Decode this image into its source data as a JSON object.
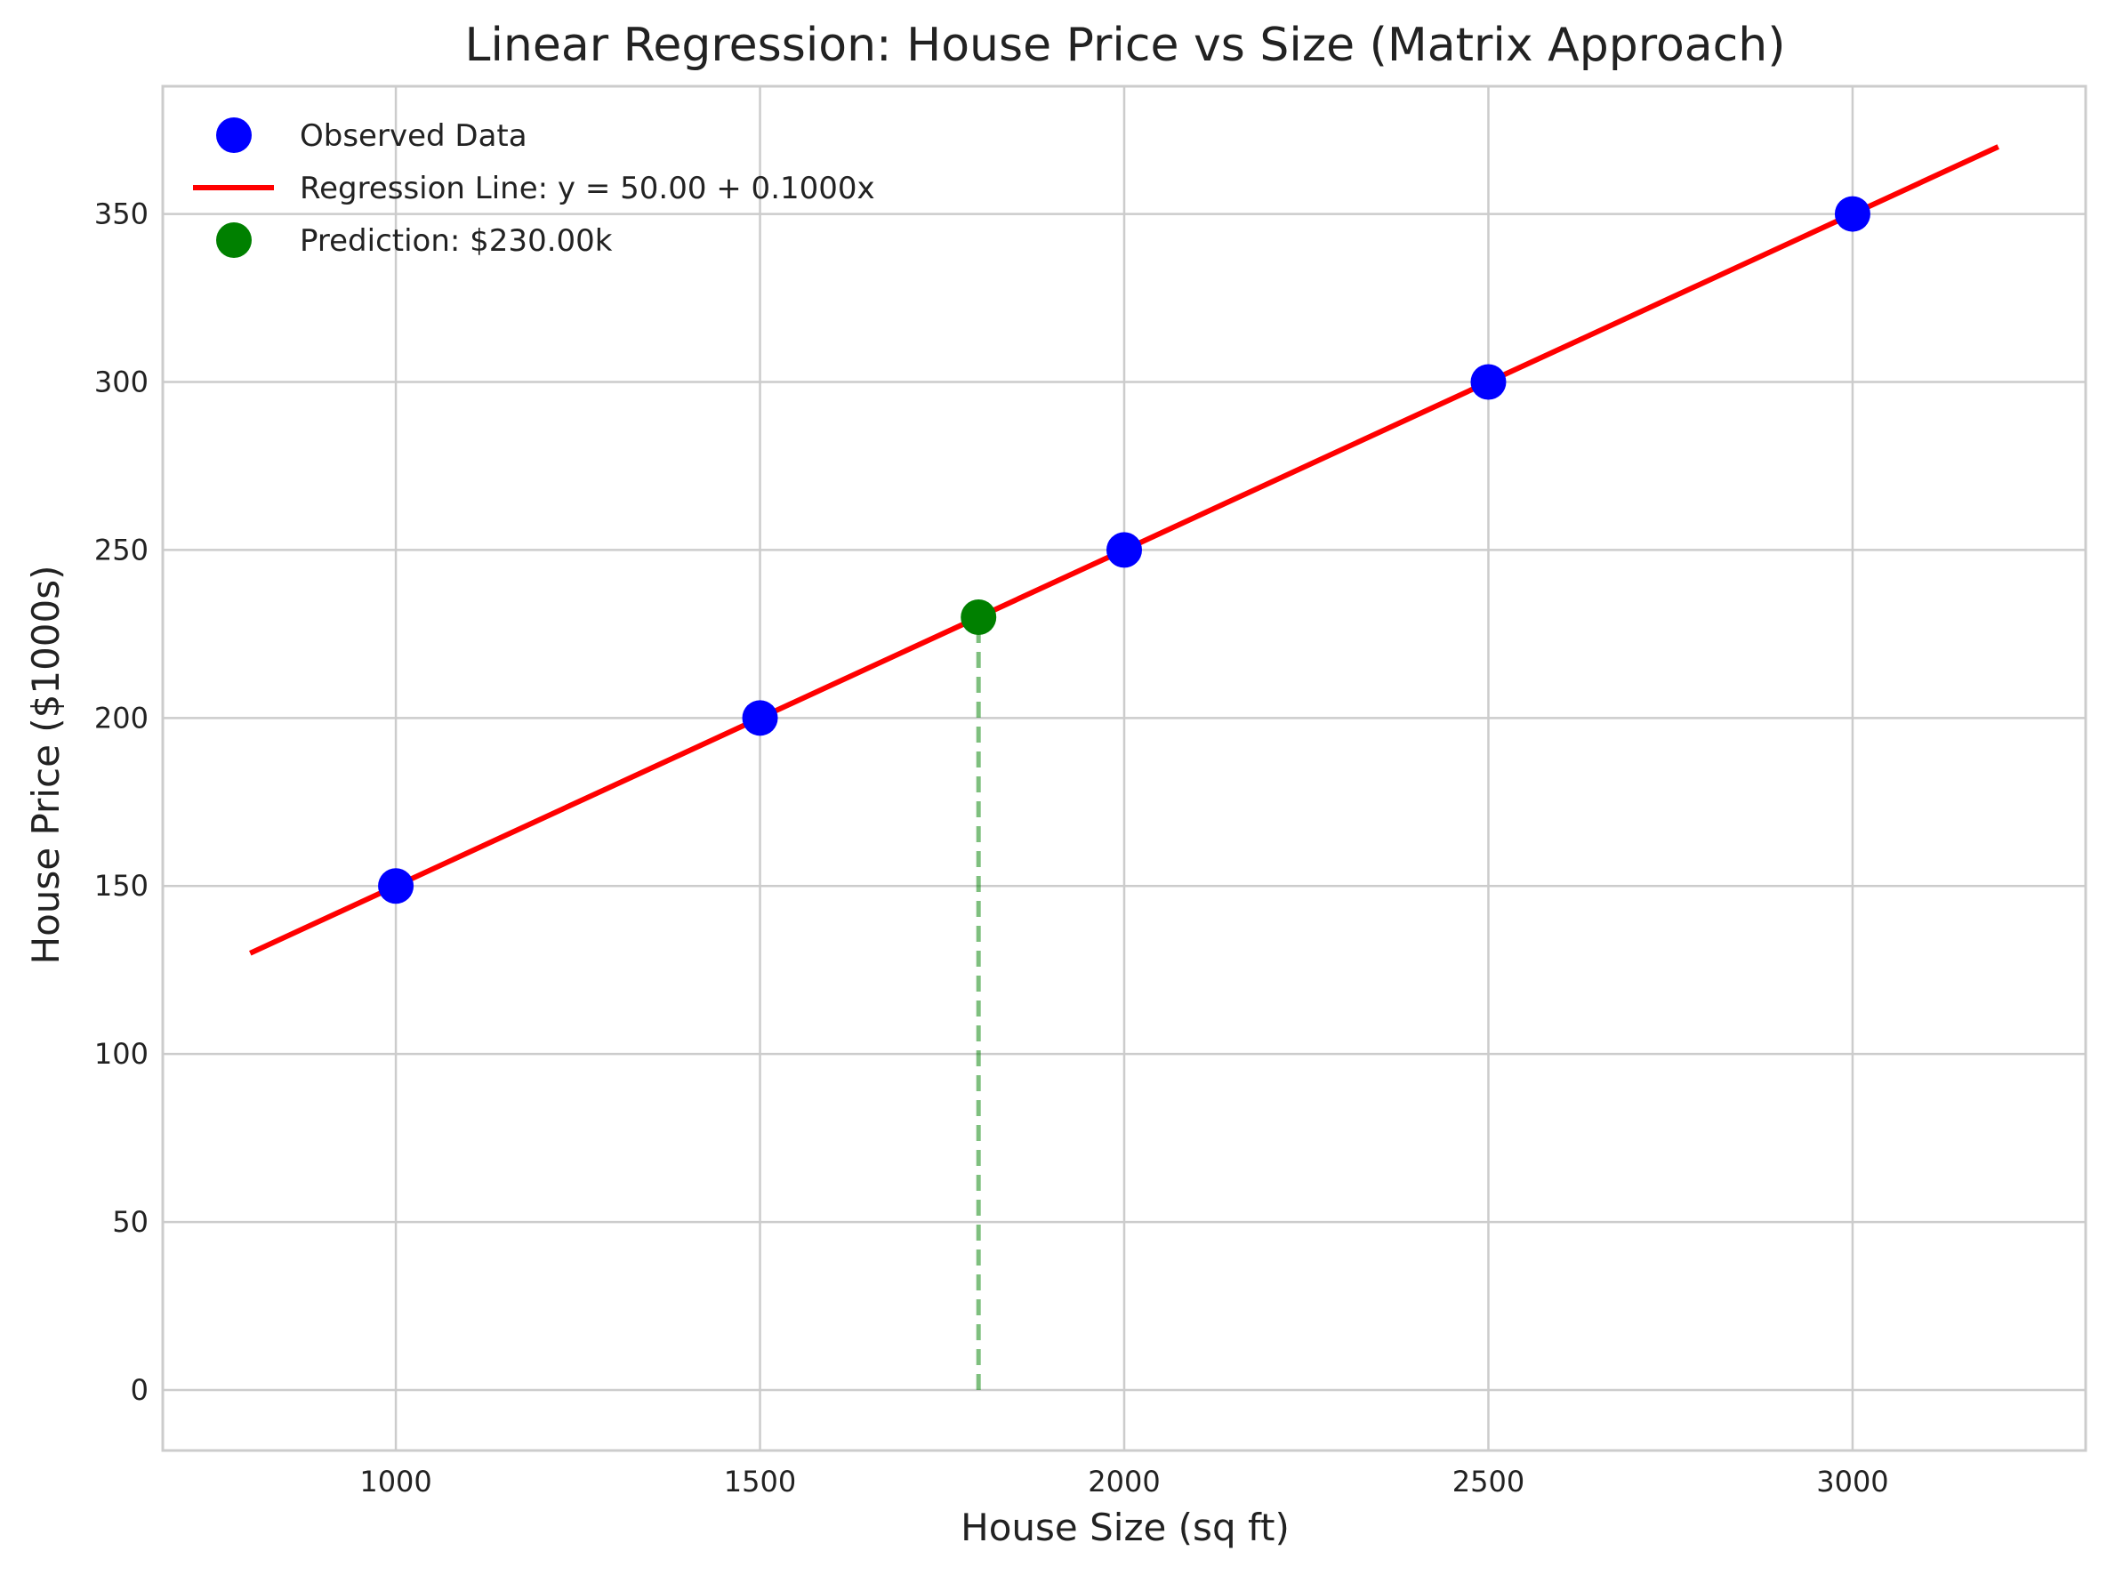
{
  "chart_data": {
    "type": "scatter",
    "title": "Linear Regression: House Price vs Size (Matrix Approach)",
    "xlabel": "House Size (sq ft)",
    "ylabel": "House Price ($1000s)",
    "xlim": [
      680,
      3320
    ],
    "ylim": [
      -18,
      388
    ],
    "xticks": [
      1000,
      1500,
      2000,
      2500,
      3000
    ],
    "yticks": [
      0,
      50,
      100,
      150,
      200,
      250,
      300,
      350
    ],
    "grid": true,
    "legend_position": "top-left",
    "series": [
      {
        "name": "Observed Data",
        "kind": "scatter",
        "color": "#0000ff",
        "x": [
          1000,
          1500,
          2000,
          2500,
          3000
        ],
        "y": [
          150,
          200,
          250,
          300,
          350
        ]
      },
      {
        "name": "Regression Line: y = 50.00 + 0.1000x",
        "kind": "line",
        "color": "#ff0000",
        "x": [
          800,
          3200
        ],
        "y": [
          130,
          370
        ]
      },
      {
        "name": "Prediction: $230.00k",
        "kind": "scatter",
        "color": "#008000",
        "x": [
          1800
        ],
        "y": [
          230
        ]
      }
    ],
    "annotations": [
      {
        "kind": "dashed-vline",
        "color": "#008000",
        "x": 1800,
        "y_from": 0,
        "y_to": 230
      }
    ]
  }
}
